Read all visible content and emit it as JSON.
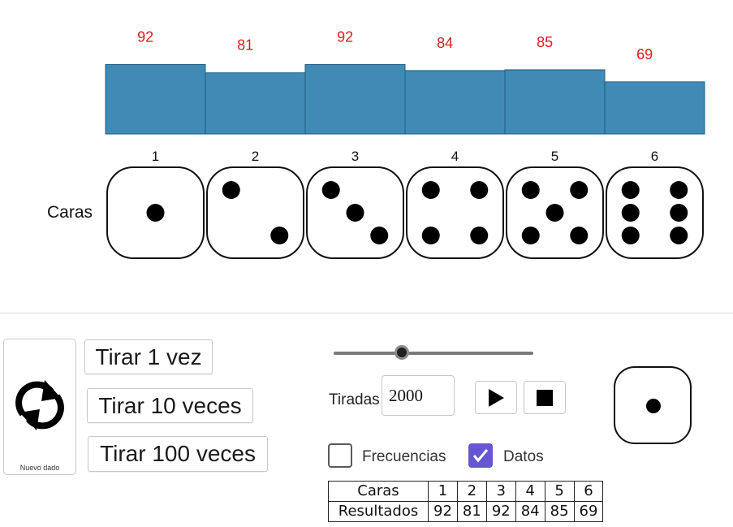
{
  "chart_data": {
    "type": "bar",
    "categories": [
      "1",
      "2",
      "3",
      "4",
      "5",
      "6"
    ],
    "values": [
      92,
      81,
      92,
      84,
      85,
      69
    ],
    "bar_color": "#3f8bb6",
    "label_color": "#d62020",
    "title": "",
    "xlabel": "",
    "ylabel": ""
  },
  "dice_row": {
    "label": "Caras"
  },
  "controls": {
    "reset_label": "Nuevo dado",
    "roll_1": "Tirar 1 vez",
    "roll_10": "Tirar 10 veces",
    "roll_100": "Tirar 100 veces",
    "tiradas_label": "Tiradas",
    "tiradas_value": "2000",
    "slider_level": 0.34,
    "play_icon": "play-icon",
    "stop_icon": "stop-icon",
    "current_face": 1
  },
  "checkboxes": {
    "frecuencias": {
      "label": "Frecuencias",
      "checked": false
    },
    "datos": {
      "label": "Datos",
      "checked": true,
      "color": "#6557d2"
    }
  },
  "table": {
    "row1_header": "Caras",
    "row2_header": "Resultados",
    "faces": [
      "1",
      "2",
      "3",
      "4",
      "5",
      "6"
    ],
    "results": [
      "92",
      "81",
      "92",
      "84",
      "85",
      "69"
    ]
  }
}
